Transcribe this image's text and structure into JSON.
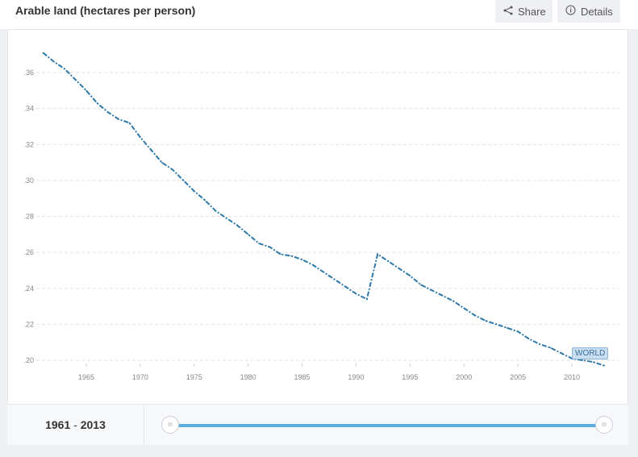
{
  "header": {
    "title": "Arable land (hectares per person)",
    "share_label": "Share",
    "details_label": "Details"
  },
  "footer": {
    "range_start": "1961",
    "range_sep": " - ",
    "range_end": "2013"
  },
  "series_tag": "WORLD",
  "colors": {
    "line": "#2c77a8",
    "slider": "#5aafe0"
  },
  "chart_data": {
    "type": "line",
    "title": "Arable land (hectares per person)",
    "xlabel": "",
    "ylabel": "",
    "xlim": [
      1961,
      2013
    ],
    "ylim": [
      0.2,
      0.37
    ],
    "x_ticks": [
      1965,
      1970,
      1975,
      1980,
      1985,
      1990,
      1995,
      2000,
      2005,
      2010
    ],
    "y_ticks": [
      ".20",
      ".22",
      ".24",
      ".26",
      ".28",
      ".30",
      ".32",
      ".34",
      ".36"
    ],
    "grid": true,
    "series": [
      {
        "name": "WORLD",
        "x": [
          1961,
          1962,
          1963,
          1964,
          1965,
          1966,
          1967,
          1968,
          1969,
          1970,
          1971,
          1972,
          1973,
          1974,
          1975,
          1976,
          1977,
          1978,
          1979,
          1980,
          1981,
          1982,
          1983,
          1984,
          1985,
          1986,
          1987,
          1988,
          1989,
          1990,
          1991,
          1992,
          1993,
          1994,
          1995,
          1996,
          1997,
          1998,
          1999,
          2000,
          2001,
          2002,
          2003,
          2004,
          2005,
          2006,
          2007,
          2008,
          2009,
          2010,
          2011,
          2012,
          2013
        ],
        "values": [
          0.371,
          0.366,
          0.362,
          0.356,
          0.35,
          0.343,
          0.338,
          0.334,
          0.332,
          0.324,
          0.317,
          0.31,
          0.306,
          0.3,
          0.294,
          0.289,
          0.283,
          0.279,
          0.275,
          0.27,
          0.265,
          0.263,
          0.259,
          0.258,
          0.256,
          0.253,
          0.249,
          0.245,
          0.241,
          0.237,
          0.234,
          0.259,
          0.255,
          0.251,
          0.247,
          0.242,
          0.239,
          0.236,
          0.233,
          0.229,
          0.225,
          0.222,
          0.22,
          0.218,
          0.216,
          0.212,
          0.209,
          0.207,
          0.204,
          0.201,
          0.2,
          0.199,
          0.197
        ]
      }
    ]
  }
}
